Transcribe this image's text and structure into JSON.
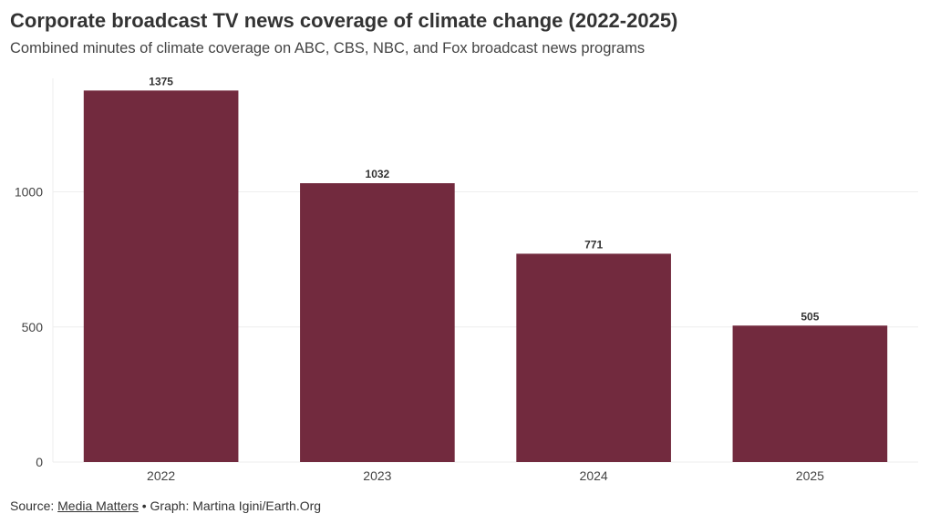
{
  "title": "Corporate broadcast TV news coverage of climate change (2022-2025)",
  "subtitle": "Combined minutes of climate coverage on ABC, CBS, NBC, and Fox broadcast news programs",
  "footer": {
    "source_prefix": "Source: ",
    "source_link": "Media Matters",
    "separator": " • ",
    "graph_credit": "Graph: Martina Igini/Earth.Org"
  },
  "colors": {
    "bar": "#722a3e",
    "grid": "#eeeeee",
    "axis_text": "#444444"
  },
  "chart_data": {
    "type": "bar",
    "categories": [
      "2022",
      "2023",
      "2024",
      "2025"
    ],
    "values": [
      1375,
      1032,
      771,
      505
    ],
    "value_labels": [
      "1375",
      "1032",
      "771",
      "505"
    ],
    "yticks": [
      0,
      500,
      1000
    ],
    "ytick_labels": [
      "0",
      "500",
      "1000"
    ],
    "ylim": [
      0,
      1420
    ],
    "grid": true,
    "title": "Corporate broadcast TV news coverage of climate change (2022-2025)",
    "xlabel": "",
    "ylabel": ""
  }
}
